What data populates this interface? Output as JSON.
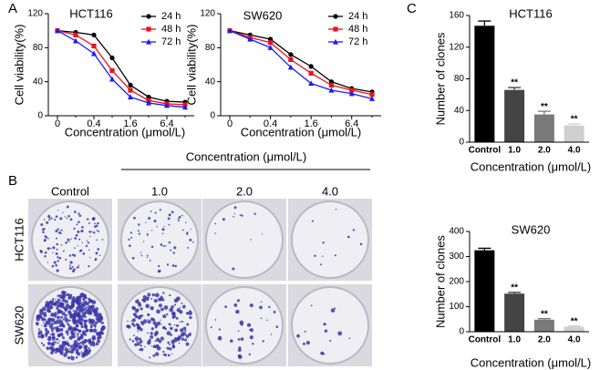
{
  "panel_labels": [
    "A",
    "B",
    "C"
  ],
  "chart_data": [
    {
      "type": "line",
      "title": "HCT116",
      "x_label": "Concentration (μmol/L)",
      "y_label": "Cell viability(%)",
      "categories": [
        "0",
        null,
        "0.4",
        null,
        "1.6",
        null,
        "6.4",
        null
      ],
      "ylim": [
        0,
        120
      ],
      "yticks": [
        0,
        40,
        80,
        120
      ],
      "legend": "upper right",
      "series": [
        {
          "name": "24 h",
          "color": "#000000",
          "marker": "circle",
          "values": [
            100,
            98,
            95,
            68,
            36,
            22,
            17,
            16
          ]
        },
        {
          "name": "48 h",
          "color": "#e8141b",
          "marker": "square",
          "values": [
            100,
            95,
            82,
            53,
            30,
            18,
            14,
            13
          ]
        },
        {
          "name": "72 h",
          "color": "#1a1aff",
          "marker": "triangle",
          "values": [
            100,
            88,
            73,
            43,
            22,
            15,
            12,
            10
          ]
        }
      ]
    },
    {
      "type": "line",
      "title": "SW620",
      "x_label": "Concentration (μmol/L)",
      "y_label": "Cell viability(%)",
      "categories": [
        "0",
        null,
        "0.4",
        null,
        "1.6",
        null,
        "6.4",
        null
      ],
      "ylim": [
        0,
        120
      ],
      "yticks": [
        0,
        40,
        80,
        120
      ],
      "legend": "upper right",
      "series": [
        {
          "name": "24 h",
          "color": "#000000",
          "marker": "circle",
          "values": [
            100,
            95,
            90,
            72,
            58,
            40,
            32,
            28
          ]
        },
        {
          "name": "48 h",
          "color": "#e8141b",
          "marker": "square",
          "values": [
            100,
            92,
            86,
            66,
            50,
            36,
            30,
            25
          ]
        },
        {
          "name": "72 h",
          "color": "#1a1aff",
          "marker": "triangle",
          "values": [
            100,
            90,
            80,
            57,
            38,
            30,
            26,
            20
          ]
        }
      ]
    },
    {
      "type": "bar",
      "title": "HCT116",
      "x_label": "Concentration (μmol/L)",
      "y_label": "Number of clones",
      "categories": [
        "Control",
        "1.0",
        "2.0",
        "4.0"
      ],
      "values": [
        147,
        66,
        35,
        21
      ],
      "errors": [
        6,
        3,
        4,
        2
      ],
      "annotations": [
        null,
        "**",
        "**",
        "**"
      ],
      "colors": [
        "#000000",
        "#444444",
        "#7a7a7a",
        "#cfcfcf"
      ],
      "ylim": [
        0,
        160
      ],
      "yticks": [
        0,
        40,
        80,
        120,
        160
      ]
    },
    {
      "type": "bar",
      "title": "SW620",
      "x_label": "Concentration (μmol/L)",
      "y_label": "Number of clones",
      "categories": [
        "Control",
        "1.0",
        "2.0",
        "4.0"
      ],
      "values": [
        325,
        152,
        48,
        20
      ],
      "errors": [
        8,
        5,
        4,
        3
      ],
      "annotations": [
        null,
        "**",
        "**",
        "**"
      ],
      "colors": [
        "#000000",
        "#444444",
        "#7a7a7a",
        "#cfcfcf"
      ],
      "ylim": [
        0,
        400
      ],
      "yticks": [
        0,
        100,
        200,
        300,
        400
      ]
    }
  ],
  "colony_assay": {
    "header": "Concentration (μmol/L)",
    "columns": [
      "Control",
      "1.0",
      "2.0",
      "4.0"
    ],
    "rows": [
      "HCT116",
      "SW620"
    ]
  }
}
